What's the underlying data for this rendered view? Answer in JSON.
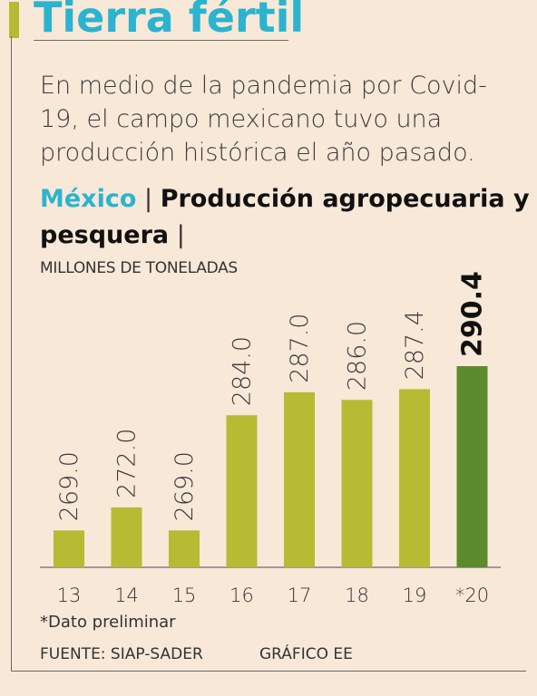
{
  "header": {
    "title": "Tierra fértil",
    "subtitle": "En medio de la pandemia por Covid-19, el campo mexicano tuvo una producción histórica el año pasado."
  },
  "chart_heading": {
    "country": "México",
    "separator": "|",
    "topic": "Producción agropecuaria y pesquera",
    "trailing_separator": "|",
    "units": "MILLONES DE TONELADAS"
  },
  "footer": {
    "note": "*Dato preliminar",
    "source": "FUENTE: SIAP-SADER",
    "credit": "GRÁFICO EE"
  },
  "colors": {
    "accent_title": "#2bb3cf",
    "bar": "#b5bb32",
    "bar_highlight": "#5e8a2e",
    "background": "#f8e8d8"
  },
  "chart_data": {
    "type": "bar",
    "title": "Producción agropecuaria y pesquera",
    "ylabel": "MILLONES DE TONELADAS",
    "categories": [
      "13",
      "14",
      "15",
      "16",
      "17",
      "18",
      "19",
      "*20"
    ],
    "values": [
      269.0,
      272.0,
      269.0,
      284.0,
      287.0,
      286.0,
      287.4,
      290.4
    ],
    "value_labels": [
      "269.0",
      "272.0",
      "269.0",
      "284.0",
      "287.0",
      "286.0",
      "287.4",
      "290.4"
    ],
    "highlight_index": 7,
    "ylim": [
      264.2,
      290.4
    ],
    "grid": false,
    "legend": "none"
  }
}
